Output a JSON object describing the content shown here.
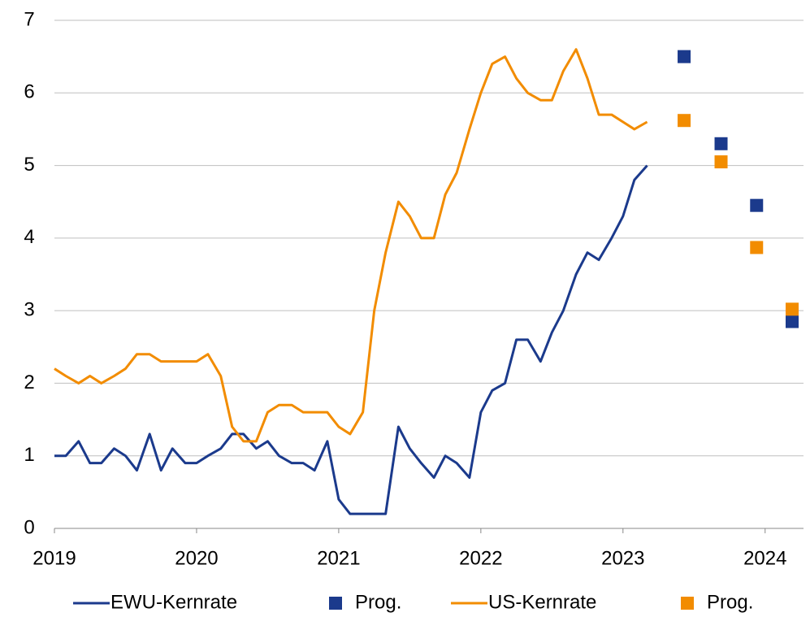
{
  "chart_data": {
    "type": "line",
    "xlim": [
      2019,
      2024.27
    ],
    "xticks": [
      2019,
      2020,
      2021,
      2022,
      2023,
      2024
    ],
    "ylim": [
      0,
      7
    ],
    "yticks": [
      0,
      1,
      2,
      3,
      4,
      5,
      6,
      7
    ],
    "grid": true,
    "legend": "bottom",
    "series": [
      {
        "name": "EWU-Kernrate",
        "type": "line",
        "color": "#1b3a8c",
        "x": [
          2019,
          2019.08,
          2019.17,
          2019.25,
          2019.33,
          2019.42,
          2019.5,
          2019.58,
          2019.67,
          2019.75,
          2019.83,
          2019.92,
          2020,
          2020.08,
          2020.17,
          2020.25,
          2020.33,
          2020.42,
          2020.5,
          2020.58,
          2020.67,
          2020.75,
          2020.83,
          2020.92,
          2021,
          2021.08,
          2021.17,
          2021.25,
          2021.33,
          2021.42,
          2021.5,
          2021.58,
          2021.67,
          2021.75,
          2021.83,
          2021.92,
          2022,
          2022.08,
          2022.17,
          2022.25,
          2022.33,
          2022.42,
          2022.5,
          2022.58,
          2022.67,
          2022.75,
          2022.83,
          2022.92,
          2023,
          2023.08,
          2023.17
        ],
        "values": [
          1.0,
          1.0,
          1.2,
          0.9,
          0.9,
          1.1,
          1.0,
          0.8,
          1.3,
          0.8,
          1.1,
          0.9,
          0.9,
          1.0,
          1.1,
          1.3,
          1.3,
          1.1,
          1.2,
          1.0,
          0.9,
          0.9,
          0.8,
          1.2,
          0.4,
          0.2,
          0.2,
          0.2,
          0.2,
          1.4,
          1.1,
          0.9,
          0.7,
          1.0,
          0.9,
          0.7,
          1.6,
          1.9,
          2.0,
          2.6,
          2.6,
          2.3,
          2.7,
          3.0,
          3.5,
          3.8,
          3.7,
          4.0,
          4.3,
          4.8,
          5.0
        ]
      },
      {
        "name": "Prog.",
        "type": "scatter",
        "color": "#1b3a8c",
        "x": [
          2023.43,
          2023.69,
          2023.94,
          2024.19
        ],
        "values": [
          6.5,
          5.3,
          4.45,
          2.85
        ]
      },
      {
        "name": "US-Kernrate",
        "type": "line",
        "color": "#f28c00",
        "x": [
          2019,
          2019.08,
          2019.17,
          2019.25,
          2019.33,
          2019.42,
          2019.5,
          2019.58,
          2019.67,
          2019.75,
          2019.83,
          2019.92,
          2020,
          2020.08,
          2020.17,
          2020.25,
          2020.33,
          2020.42,
          2020.5,
          2020.58,
          2020.67,
          2020.75,
          2020.83,
          2020.92,
          2021,
          2021.08,
          2021.17,
          2021.25,
          2021.33,
          2021.42,
          2021.5,
          2021.58,
          2021.67,
          2021.75,
          2021.83,
          2021.92,
          2022,
          2022.08,
          2022.17,
          2022.25,
          2022.33,
          2022.42,
          2022.5,
          2022.58,
          2022.67,
          2022.75,
          2022.83,
          2022.92,
          2023,
          2023.08,
          2023.17
        ],
        "values": [
          2.2,
          2.1,
          2.0,
          2.1,
          2.0,
          2.1,
          2.2,
          2.4,
          2.4,
          2.3,
          2.3,
          2.3,
          2.3,
          2.4,
          2.1,
          1.4,
          1.2,
          1.2,
          1.6,
          1.7,
          1.7,
          1.6,
          1.6,
          1.6,
          1.4,
          1.3,
          1.6,
          3.0,
          3.8,
          4.5,
          4.3,
          4.0,
          4.0,
          4.6,
          4.9,
          5.5,
          6.0,
          6.4,
          6.5,
          6.2,
          6.0,
          5.9,
          5.9,
          6.3,
          6.6,
          6.2,
          5.7,
          5.7,
          5.6,
          5.5,
          5.6
        ]
      },
      {
        "name": "Prog.",
        "type": "scatter",
        "color": "#f28c00",
        "x": [
          2023.43,
          2023.69,
          2023.94,
          2024.19
        ],
        "values": [
          5.62,
          5.05,
          3.87,
          3.02
        ]
      }
    ]
  }
}
